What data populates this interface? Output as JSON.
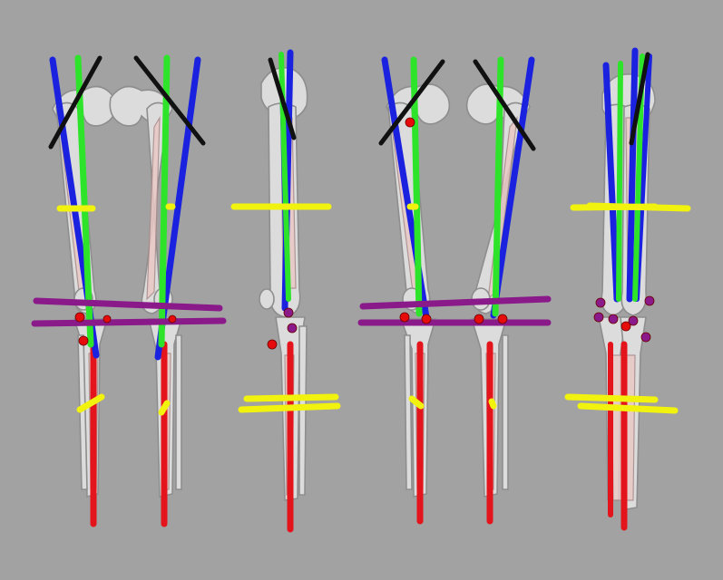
{
  "scene": {
    "background": "#a2a2a2",
    "colors": {
      "bone": "#dcdcdc",
      "bone_outline": "#8e8e8e",
      "overlay": "#e9c9c6",
      "tibia_axis": "#e3141b",
      "femur_axis": "#1a22e0",
      "mechanical_axis": "#2ee42a",
      "knee_plane": "#8a1a8a",
      "level_marker": "#f2f20f",
      "hip_marker": "#111111",
      "joint_center": "#e60c0c"
    },
    "views": [
      {
        "id": "view-1",
        "orientation": "anterior-paired"
      },
      {
        "id": "view-2",
        "orientation": "lateral-paired"
      },
      {
        "id": "view-3",
        "orientation": "anterior-paired"
      },
      {
        "id": "view-4",
        "orientation": "lateral-paired"
      }
    ]
  }
}
